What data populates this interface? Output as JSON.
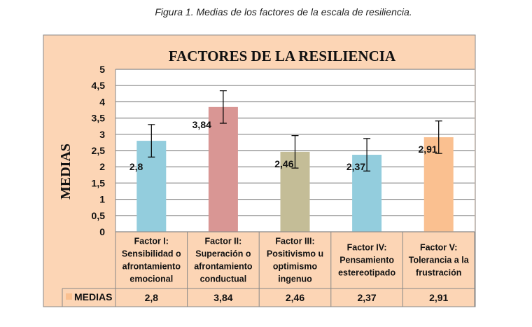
{
  "caption": "Figura 1. Medias de los factores de la escala de resiliencia.",
  "chart_data": {
    "type": "bar",
    "title": "FACTORES DE LA RESILIENCIA",
    "ylabel": "MEDIAS",
    "ylim": [
      0,
      5
    ],
    "yticks": [
      "0",
      "0,5",
      "1",
      "1,5",
      "2",
      "2,5",
      "3",
      "3,5",
      "4",
      "4,5",
      "5"
    ],
    "grid": true,
    "categories": [
      [
        "Factor I:",
        "Sensibilidad o",
        "afrontamiento",
        "emocional"
      ],
      [
        "Factor II:",
        "Superación o",
        "afrontamiento",
        "conductual"
      ],
      [
        "Factor III:",
        "Positivismo u",
        "optimismo",
        "ingenuo"
      ],
      [
        "Factor IV:",
        "Pensamiento",
        "estereotipado"
      ],
      [
        "Factor V:",
        "Tolerancia a la",
        "frustración"
      ]
    ],
    "series": [
      {
        "name": "MEDIAS",
        "values": [
          2.8,
          3.84,
          2.46,
          2.37,
          2.91
        ]
      }
    ],
    "data_labels": [
      "2,8",
      "3,84",
      "2,46",
      "2,37",
      "2,91"
    ],
    "error_bar": 0.5,
    "bar_colors": [
      "#93CDDD",
      "#D99694",
      "#C4BD97",
      "#93CDDD",
      "#FAC090"
    ],
    "background_color": "#FCD5B5",
    "data_table": true
  }
}
